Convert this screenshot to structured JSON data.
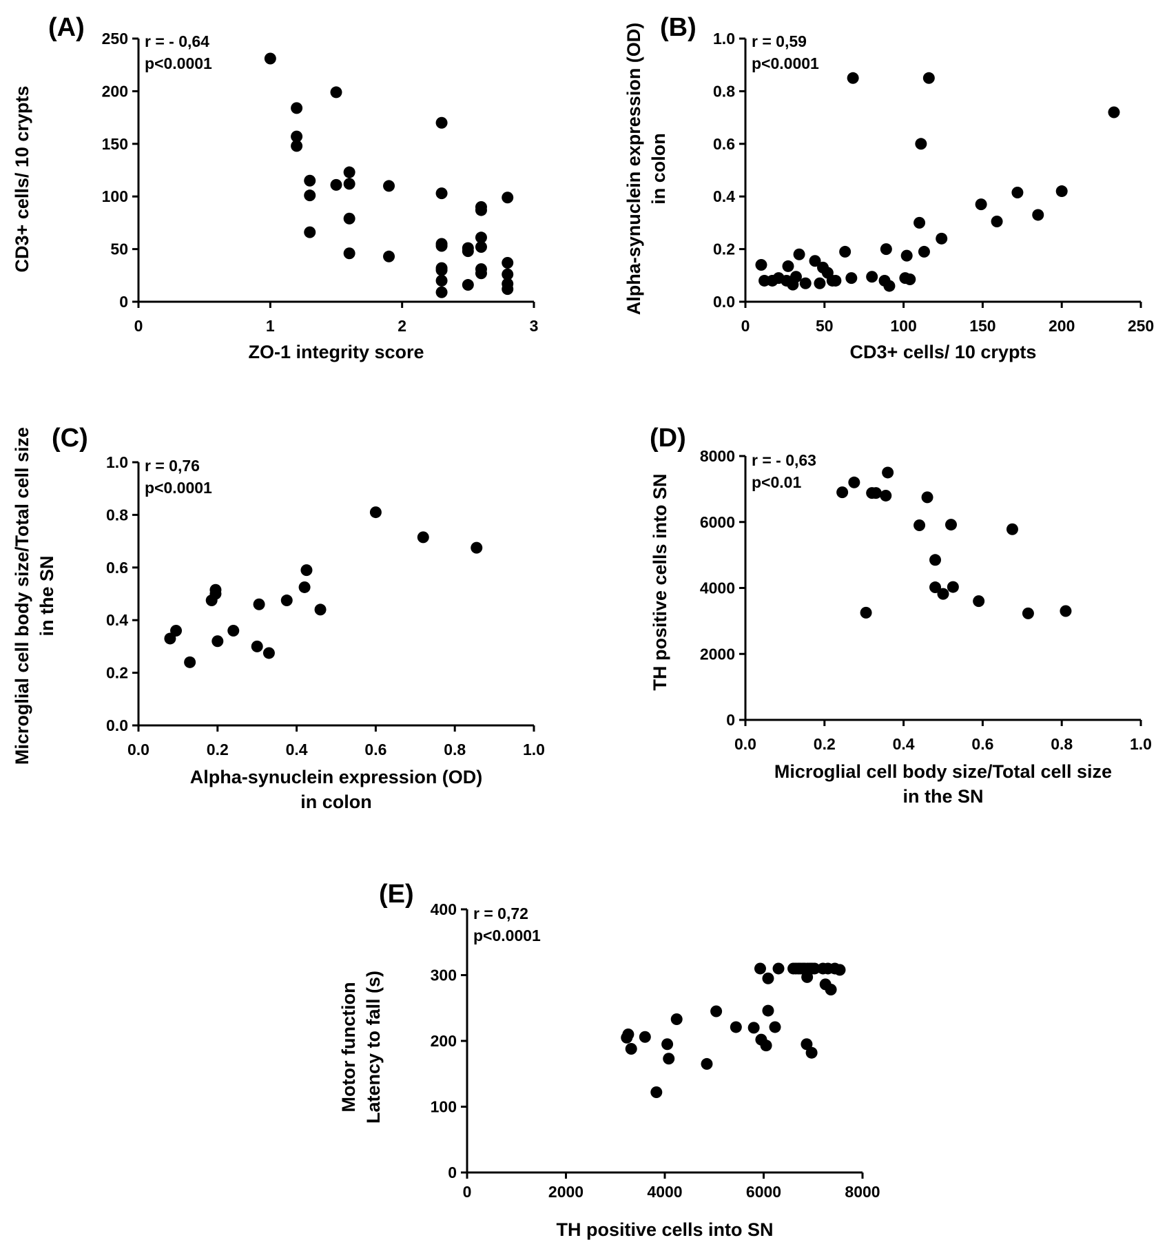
{
  "chart_data": [
    {
      "type": "scatter",
      "panel": "(A)",
      "annotation": [
        "r = - 0,64",
        "p<0.0001"
      ],
      "xlabel": [
        "ZO-1 integrity score"
      ],
      "ylabel": [
        "CD3+ cells/ 10 crypts"
      ],
      "xlim": [
        0,
        3
      ],
      "ylim": [
        0,
        250
      ],
      "xticks": [
        0,
        1,
        2,
        3
      ],
      "yticks": [
        0,
        50,
        100,
        150,
        200,
        250
      ],
      "xtick_labels": [
        "0",
        "1",
        "2",
        "3"
      ],
      "ytick_labels": [
        "0",
        "50",
        "100",
        "150",
        "200",
        "250"
      ],
      "points": [
        [
          1.0,
          231
        ],
        [
          1.2,
          184
        ],
        [
          1.2,
          157
        ],
        [
          1.2,
          148
        ],
        [
          1.3,
          115
        ],
        [
          1.3,
          101
        ],
        [
          1.3,
          66
        ],
        [
          1.5,
          199
        ],
        [
          1.5,
          111
        ],
        [
          1.6,
          123
        ],
        [
          1.6,
          112
        ],
        [
          1.6,
          79
        ],
        [
          1.6,
          46
        ],
        [
          1.9,
          110
        ],
        [
          1.9,
          43
        ],
        [
          2.3,
          170
        ],
        [
          2.3,
          103
        ],
        [
          2.3,
          55
        ],
        [
          2.3,
          53
        ],
        [
          2.3,
          32
        ],
        [
          2.3,
          30
        ],
        [
          2.3,
          20
        ],
        [
          2.3,
          9
        ],
        [
          2.5,
          51
        ],
        [
          2.5,
          48
        ],
        [
          2.5,
          16
        ],
        [
          2.6,
          90
        ],
        [
          2.6,
          87
        ],
        [
          2.6,
          61
        ],
        [
          2.6,
          52
        ],
        [
          2.6,
          31
        ],
        [
          2.6,
          27
        ],
        [
          2.8,
          99
        ],
        [
          2.8,
          37
        ],
        [
          2.8,
          26
        ],
        [
          2.8,
          17
        ],
        [
          2.8,
          12
        ]
      ]
    },
    {
      "type": "scatter",
      "panel": "(B)",
      "annotation": [
        "r = 0,59",
        "p<0.0001"
      ],
      "xlabel": [
        "CD3+ cells/ 10 crypts"
      ],
      "ylabel": [
        "Alpha-synuclein expression (OD)",
        "in colon"
      ],
      "xlim": [
        0,
        250
      ],
      "ylim": [
        0,
        1.0
      ],
      "xticks": [
        0,
        50,
        100,
        150,
        200,
        250
      ],
      "yticks": [
        0,
        0.2,
        0.4,
        0.6,
        0.8,
        1.0
      ],
      "xtick_labels": [
        "0",
        "50",
        "100",
        "150",
        "200",
        "250"
      ],
      "ytick_labels": [
        "0.0",
        "0.2",
        "0.4",
        "0.6",
        "0.8",
        "1.0"
      ],
      "points": [
        [
          10,
          0.14
        ],
        [
          12,
          0.08
        ],
        [
          17,
          0.08
        ],
        [
          21,
          0.09
        ],
        [
          26,
          0.08
        ],
        [
          27,
          0.135
        ],
        [
          30,
          0.065
        ],
        [
          32,
          0.095
        ],
        [
          34,
          0.18
        ],
        [
          38,
          0.07
        ],
        [
          44,
          0.155
        ],
        [
          47,
          0.07
        ],
        [
          49,
          0.13
        ],
        [
          52,
          0.11
        ],
        [
          55,
          0.08
        ],
        [
          57,
          0.08
        ],
        [
          63,
          0.19
        ],
        [
          67,
          0.09
        ],
        [
          68,
          0.85
        ],
        [
          80,
          0.095
        ],
        [
          88,
          0.08
        ],
        [
          89,
          0.2
        ],
        [
          91,
          0.06
        ],
        [
          101,
          0.09
        ],
        [
          102,
          0.175
        ],
        [
          104,
          0.085
        ],
        [
          110,
          0.3
        ],
        [
          111,
          0.6
        ],
        [
          113,
          0.19
        ],
        [
          116,
          0.85
        ],
        [
          124,
          0.24
        ],
        [
          149,
          0.37
        ],
        [
          159,
          0.305
        ],
        [
          172,
          0.415
        ],
        [
          185,
          0.33
        ],
        [
          200,
          0.42
        ],
        [
          233,
          0.72
        ]
      ]
    },
    {
      "type": "scatter",
      "panel": "(C)",
      "annotation": [
        "r = 0,76",
        "p<0.0001"
      ],
      "xlabel": [
        "Alpha-synuclein expression (OD)",
        "in colon"
      ],
      "ylabel": [
        "Microglial cell body size/Total cell size",
        "in the SN"
      ],
      "xlim": [
        0,
        1.0
      ],
      "ylim": [
        0,
        1.0
      ],
      "xticks": [
        0,
        0.2,
        0.4,
        0.6,
        0.8,
        1.0
      ],
      "yticks": [
        0,
        0.2,
        0.4,
        0.6,
        0.8,
        1.0
      ],
      "xtick_labels": [
        "0.0",
        "0.2",
        "0.4",
        "0.6",
        "0.8",
        "1.0"
      ],
      "ytick_labels": [
        "0.0",
        "0.2",
        "0.4",
        "0.6",
        "0.8",
        "1.0"
      ],
      "points": [
        [
          0.08,
          0.33
        ],
        [
          0.095,
          0.36
        ],
        [
          0.13,
          0.24
        ],
        [
          0.185,
          0.475
        ],
        [
          0.195,
          0.515
        ],
        [
          0.195,
          0.5
        ],
        [
          0.2,
          0.32
        ],
        [
          0.24,
          0.36
        ],
        [
          0.3,
          0.3
        ],
        [
          0.305,
          0.46
        ],
        [
          0.33,
          0.275
        ],
        [
          0.375,
          0.475
        ],
        [
          0.42,
          0.525
        ],
        [
          0.425,
          0.59
        ],
        [
          0.46,
          0.44
        ],
        [
          0.6,
          0.81
        ],
        [
          0.72,
          0.715
        ],
        [
          0.855,
          0.675
        ]
      ]
    },
    {
      "type": "scatter",
      "panel": "(D)",
      "annotation": [
        "r = - 0,63",
        "p<0.01"
      ],
      "xlabel": [
        "Microglial cell body size/Total cell size",
        "in the SN"
      ],
      "ylabel": [
        "TH positive cells into SN"
      ],
      "xlim": [
        0,
        1.0
      ],
      "ylim": [
        0,
        8000
      ],
      "xticks": [
        0,
        0.2,
        0.4,
        0.6,
        0.8,
        1.0
      ],
      "yticks": [
        0,
        2000,
        4000,
        6000,
        8000
      ],
      "xtick_labels": [
        "0.0",
        "0.2",
        "0.4",
        "0.6",
        "0.8",
        "1.0"
      ],
      "ytick_labels": [
        "0",
        "2000",
        "4000",
        "6000",
        "8000"
      ],
      "points": [
        [
          0.245,
          6900
        ],
        [
          0.275,
          7200
        ],
        [
          0.305,
          3250
        ],
        [
          0.32,
          6880
        ],
        [
          0.33,
          6880
        ],
        [
          0.355,
          6800
        ],
        [
          0.36,
          7500
        ],
        [
          0.44,
          5900
        ],
        [
          0.46,
          6750
        ],
        [
          0.48,
          4850
        ],
        [
          0.48,
          4020
        ],
        [
          0.5,
          3820
        ],
        [
          0.52,
          5920
        ],
        [
          0.525,
          4030
        ],
        [
          0.59,
          3600
        ],
        [
          0.675,
          5780
        ],
        [
          0.715,
          3230
        ],
        [
          0.81,
          3300
        ]
      ]
    },
    {
      "type": "scatter",
      "panel": "(E)",
      "annotation": [
        "r = 0,72",
        "p<0.0001"
      ],
      "xlabel": [
        "TH positive cells into SN"
      ],
      "ylabel": [
        "Motor function",
        "Latency to fall (s)"
      ],
      "xlim": [
        0,
        8000
      ],
      "ylim": [
        0,
        400
      ],
      "xticks": [
        0,
        2000,
        4000,
        6000,
        8000
      ],
      "yticks": [
        0,
        100,
        200,
        300,
        400
      ],
      "xtick_labels": [
        "0",
        "2000",
        "4000",
        "6000",
        "8000"
      ],
      "ytick_labels": [
        "0",
        "100",
        "200",
        "300",
        "400"
      ],
      "points": [
        [
          3230,
          205
        ],
        [
          3260,
          210
        ],
        [
          3320,
          188
        ],
        [
          3600,
          206
        ],
        [
          3830,
          122
        ],
        [
          4050,
          195
        ],
        [
          4080,
          173
        ],
        [
          4240,
          233
        ],
        [
          4850,
          165
        ],
        [
          5040,
          245
        ],
        [
          5440,
          221
        ],
        [
          5800,
          220
        ],
        [
          5930,
          310
        ],
        [
          5950,
          202
        ],
        [
          6050,
          193
        ],
        [
          6090,
          246
        ],
        [
          6090,
          295
        ],
        [
          6230,
          221
        ],
        [
          6300,
          310
        ],
        [
          6600,
          310
        ],
        [
          6650,
          310
        ],
        [
          6700,
          310
        ],
        [
          6740,
          310
        ],
        [
          6790,
          310
        ],
        [
          6830,
          310
        ],
        [
          6890,
          310
        ],
        [
          6940,
          310
        ],
        [
          6980,
          310
        ],
        [
          6870,
          195
        ],
        [
          6880,
          297
        ],
        [
          6970,
          182
        ],
        [
          7030,
          310
        ],
        [
          7200,
          310
        ],
        [
          7250,
          286
        ],
        [
          7300,
          310
        ],
        [
          7360,
          278
        ],
        [
          7440,
          310
        ],
        [
          7540,
          308
        ]
      ]
    }
  ]
}
